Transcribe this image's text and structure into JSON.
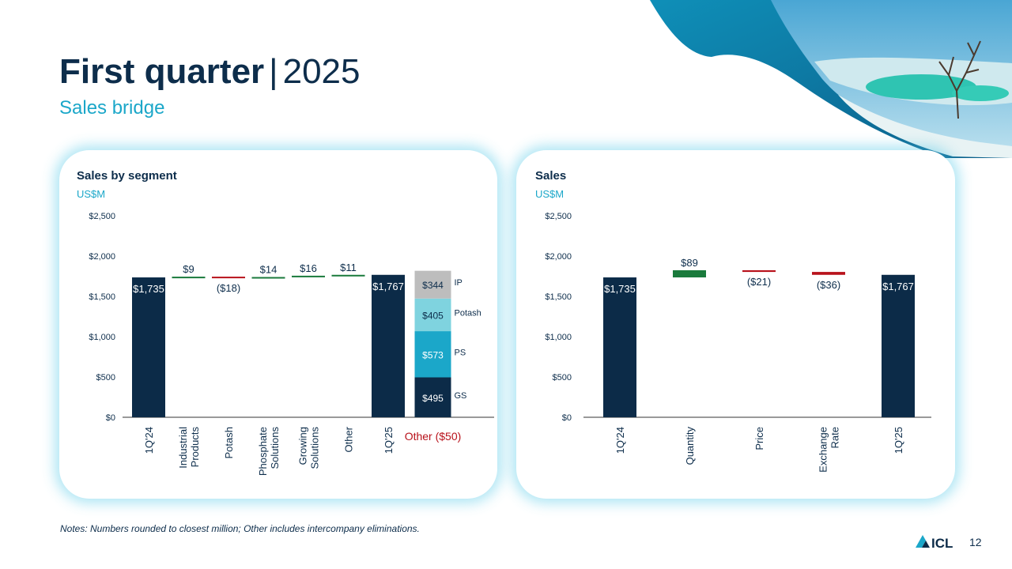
{
  "title": {
    "main": "First quarter",
    "separator": "|",
    "year": "2025"
  },
  "subtitle": "Sales bridge",
  "footnote": "Notes: Numbers rounded to closest million; Other includes intercompany eliminations.",
  "page_number": "12",
  "logo_text": "ICL",
  "colors": {
    "navy": "#0c2b48",
    "green": "#1a7a3c",
    "red": "#b8121b",
    "teal": "#1ba7c9",
    "light_teal": "#7fd3df",
    "gray": "#bdbdbd",
    "axis_text": "#0d2d4b"
  },
  "chart_data": [
    {
      "type": "waterfall",
      "title": "Sales by segment",
      "unit": "US$M",
      "ylim": [
        0,
        2500
      ],
      "yticks": [
        0,
        500,
        1000,
        1500,
        2000,
        2500
      ],
      "ytick_labels": [
        "$0",
        "$500",
        "$1,000",
        "$1,500",
        "$2,000",
        "$2,500"
      ],
      "bars": [
        {
          "category": "1Q'24",
          "label": "$1,735",
          "value": 1735,
          "kind": "total"
        },
        {
          "category": "Industrial Products",
          "label": "$9",
          "value": 9,
          "kind": "increase"
        },
        {
          "category": "Potash",
          "label": "($18)",
          "value": -18,
          "kind": "decrease"
        },
        {
          "category": "Phosphate Solutions",
          "label": "$14",
          "value": 14,
          "kind": "increase"
        },
        {
          "category": "Growing Solutions",
          "label": "$16",
          "value": 16,
          "kind": "increase"
        },
        {
          "category": "Other",
          "label": "$11",
          "value": 11,
          "kind": "increase"
        },
        {
          "category": "1Q'25",
          "label": "$1,767",
          "value": 1767,
          "kind": "total"
        }
      ],
      "breakdown": {
        "category": "Other ($50)",
        "segments": [
          {
            "name": "GS",
            "label": "$495",
            "value": 495
          },
          {
            "name": "PS",
            "label": "$573",
            "value": 573
          },
          {
            "name": "Potash",
            "label": "$405",
            "value": 405
          },
          {
            "name": "IP",
            "label": "$344",
            "value": 344
          }
        ]
      }
    },
    {
      "type": "waterfall",
      "title": "Sales",
      "unit": "US$M",
      "ylim": [
        0,
        2500
      ],
      "yticks": [
        0,
        500,
        1000,
        1500,
        2000,
        2500
      ],
      "ytick_labels": [
        "$0",
        "$500",
        "$1,000",
        "$1,500",
        "$2,000",
        "$2,500"
      ],
      "bars": [
        {
          "category": "1Q'24",
          "label": "$1,735",
          "value": 1735,
          "kind": "total"
        },
        {
          "category": "Quantity",
          "label": "$89",
          "value": 89,
          "kind": "increase"
        },
        {
          "category": "Price",
          "label": "($21)",
          "value": -21,
          "kind": "decrease"
        },
        {
          "category": "Exchange Rate",
          "label": "($36)",
          "value": -36,
          "kind": "decrease"
        },
        {
          "category": "1Q'25",
          "label": "$1,767",
          "value": 1767,
          "kind": "total"
        }
      ]
    }
  ]
}
